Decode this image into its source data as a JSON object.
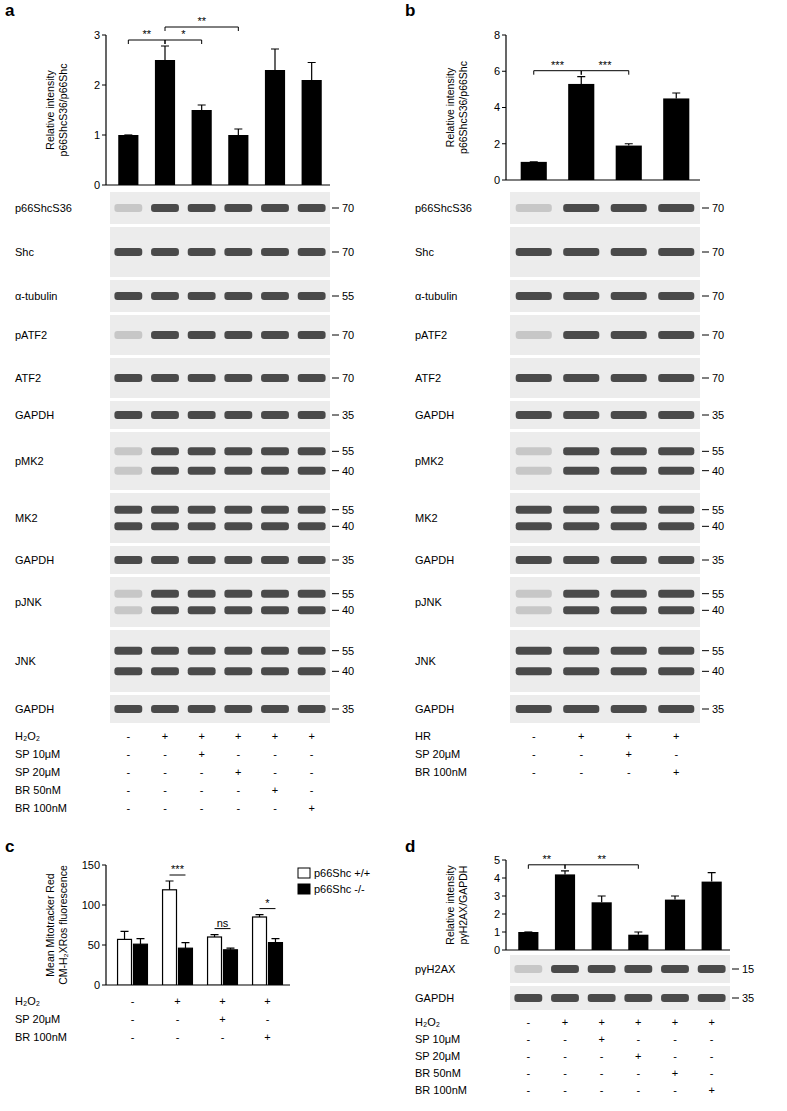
{
  "chart_data": [
    {
      "type": "bar",
      "panel": "a",
      "ylabel": [
        "Relative intensity",
        "p66ShcS36/p66Shc"
      ],
      "categories": [
        null,
        null,
        null,
        null,
        null,
        null
      ],
      "values": [
        1,
        2.5,
        1.5,
        1.0,
        2.3,
        2.1
      ],
      "errors": [
        0,
        0.28,
        0.1,
        0.12,
        0.42,
        0.35
      ],
      "color": "#000000",
      "ylim": [
        0,
        3
      ],
      "yticks": [
        0,
        1,
        2,
        3
      ],
      "significance": [
        {
          "between": [
            0,
            1
          ],
          "label": "**"
        },
        {
          "between": [
            1,
            2
          ],
          "label": "*"
        },
        {
          "between": [
            1,
            3
          ],
          "label": "**"
        }
      ],
      "blots": [
        {
          "label": "p66ShcS36",
          "markers": [
            70
          ]
        },
        {
          "label": "Shc",
          "markers": [
            70
          ]
        },
        {
          "label": "α-tubulin",
          "markers": [
            55
          ]
        },
        {
          "label": "pATF2",
          "markers": [
            70
          ]
        },
        {
          "label": "ATF2",
          "markers": [
            70
          ]
        },
        {
          "label": "GAPDH",
          "markers": [
            35
          ]
        },
        {
          "label": "pMK2",
          "markers": [
            55,
            40
          ]
        },
        {
          "label": "MK2",
          "markers": [
            55,
            40
          ]
        },
        {
          "label": "GAPDH",
          "markers": [
            35
          ]
        },
        {
          "label": "pJNK",
          "markers": [
            55,
            40
          ]
        },
        {
          "label": "JNK",
          "markers": [
            55,
            40
          ]
        },
        {
          "label": "GAPDH",
          "markers": [
            35
          ]
        }
      ],
      "conditions": [
        {
          "label": "H₂O₂",
          "signs": [
            "-",
            "+",
            "+",
            "+",
            "+",
            "+"
          ]
        },
        {
          "label": "SP 10μM",
          "signs": [
            "-",
            "-",
            "+",
            "-",
            "-",
            "-"
          ]
        },
        {
          "label": "SP 20μM",
          "signs": [
            "-",
            "-",
            "-",
            "+",
            "-",
            "-"
          ]
        },
        {
          "label": "BR 50nM",
          "signs": [
            "-",
            "-",
            "-",
            "-",
            "+",
            "-"
          ]
        },
        {
          "label": "BR 100nM",
          "signs": [
            "-",
            "-",
            "-",
            "-",
            "-",
            "+"
          ]
        }
      ]
    },
    {
      "type": "bar",
      "panel": "b",
      "ylabel": [
        "Relative intensity",
        "p66ShcS36/p66Shc"
      ],
      "categories": [
        null,
        null,
        null,
        null
      ],
      "values": [
        1,
        5.3,
        1.9,
        4.5
      ],
      "errors": [
        0,
        0.4,
        0.1,
        0.3
      ],
      "color": "#000000",
      "ylim": [
        0,
        8
      ],
      "yticks": [
        0,
        2,
        4,
        6,
        8
      ],
      "significance": [
        {
          "between": [
            0,
            1
          ],
          "label": "***"
        },
        {
          "between": [
            1,
            2
          ],
          "label": "***"
        }
      ],
      "blots": [
        {
          "label": "p66ShcS36",
          "markers": [
            70
          ]
        },
        {
          "label": "Shc",
          "markers": [
            70
          ]
        },
        {
          "label": "α-tubulin",
          "markers": [
            70
          ]
        },
        {
          "label": "pATF2",
          "markers": [
            70
          ]
        },
        {
          "label": "ATF2",
          "markers": [
            70
          ]
        },
        {
          "label": "GAPDH",
          "markers": [
            35
          ]
        },
        {
          "label": "pMK2",
          "markers": [
            55,
            40
          ]
        },
        {
          "label": "MK2",
          "markers": [
            55,
            40
          ]
        },
        {
          "label": "GAPDH",
          "markers": [
            35
          ]
        },
        {
          "label": "pJNK",
          "markers": [
            55,
            40
          ]
        },
        {
          "label": "JNK",
          "markers": [
            55,
            40
          ]
        },
        {
          "label": "GAPDH",
          "markers": [
            35
          ]
        }
      ],
      "conditions": [
        {
          "label": "HR",
          "signs": [
            "-",
            "+",
            "+",
            "+"
          ]
        },
        {
          "label": "SP 20μM",
          "signs": [
            "-",
            "-",
            "+",
            "-"
          ]
        },
        {
          "label": "BR 100nM",
          "signs": [
            "-",
            "-",
            "-",
            "+"
          ]
        }
      ]
    },
    {
      "type": "bar",
      "panel": "c",
      "ylabel": [
        "Mean Mitotracker Red",
        "CM-H₂XRos fluorescence"
      ],
      "categories": [
        null,
        null,
        null,
        null
      ],
      "series": [
        {
          "name": "p66Shc +/+",
          "color": "#ffffff",
          "values": [
            57,
            119,
            60,
            85
          ],
          "errors": [
            10,
            11,
            3,
            3
          ]
        },
        {
          "name": "p66Shc -/-",
          "color": "#000000",
          "values": [
            51,
            46,
            44,
            53
          ],
          "errors": [
            7,
            7,
            2,
            5
          ]
        }
      ],
      "ylim": [
        0,
        150
      ],
      "yticks": [
        0,
        50,
        100,
        150
      ],
      "legend": "upper right",
      "significance": [
        {
          "group": 1,
          "label": "***"
        },
        {
          "group": 2,
          "label": "ns"
        },
        {
          "group": 3,
          "label": "*"
        }
      ],
      "conditions": [
        {
          "label": "H₂O₂",
          "signs": [
            "-",
            "+",
            "+",
            "+"
          ]
        },
        {
          "label": "SP 20μM",
          "signs": [
            "-",
            "-",
            "+",
            "-"
          ]
        },
        {
          "label": "BR 100nM",
          "signs": [
            "-",
            "-",
            "-",
            "+"
          ]
        }
      ]
    },
    {
      "type": "bar",
      "panel": "d",
      "ylabel": [
        "Relative intensity",
        "pγH2AX/GAPDH"
      ],
      "categories": [
        null,
        null,
        null,
        null,
        null,
        null
      ],
      "values": [
        1,
        4.2,
        2.65,
        0.85,
        2.8,
        3.8
      ],
      "errors": [
        0,
        0.2,
        0.35,
        0.15,
        0.2,
        0.5
      ],
      "color": "#000000",
      "ylim": [
        0,
        5
      ],
      "yticks": [
        0,
        1,
        2,
        3,
        4,
        5
      ],
      "significance": [
        {
          "between": [
            0,
            1
          ],
          "label": "**"
        },
        {
          "between": [
            1,
            3
          ],
          "label": "**"
        }
      ],
      "blots": [
        {
          "label": "pγH2AX",
          "markers": [
            15
          ]
        },
        {
          "label": "GAPDH",
          "markers": [
            35
          ]
        }
      ],
      "conditions": [
        {
          "label": "H₂O₂",
          "signs": [
            "-",
            "+",
            "+",
            "+",
            "+",
            "+"
          ]
        },
        {
          "label": "SP 10μM",
          "signs": [
            "-",
            "-",
            "+",
            "-",
            "-",
            "-"
          ]
        },
        {
          "label": "SP 20μM",
          "signs": [
            "-",
            "-",
            "-",
            "+",
            "-",
            "-"
          ]
        },
        {
          "label": "BR 50nM",
          "signs": [
            "-",
            "-",
            "-",
            "-",
            "+",
            "-"
          ]
        },
        {
          "label": "BR 100nM",
          "signs": [
            "-",
            "-",
            "-",
            "-",
            "-",
            "+"
          ]
        }
      ]
    }
  ]
}
